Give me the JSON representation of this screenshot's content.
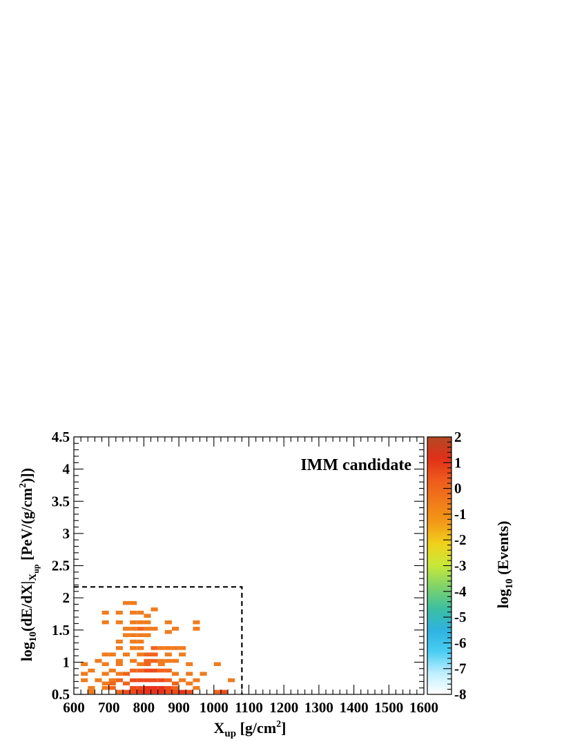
{
  "chart_data": {
    "type": "heatmap",
    "annotation": "IMM candidate",
    "xlabel": {
      "main": "X",
      "sub": "up",
      "rest": " [g/cm",
      "sup": "2",
      "end": "]"
    },
    "ylabel": {
      "a": "log",
      "a_sub": "10",
      "b": "(dE/dX|",
      "b_sub": "X",
      "b_subsub": "up",
      "c": " [PeV/(g/cm",
      "c_sup": "2",
      "d": ")])"
    },
    "zlabel": {
      "a": "log",
      "a_sub": "10",
      "b": " (Events)"
    },
    "xlim": [
      600,
      1600
    ],
    "ylim": [
      0.5,
      4.5
    ],
    "zlim": [
      -8,
      2
    ],
    "x_ticks": [
      "600",
      "700",
      "800",
      "900",
      "1000",
      "1100",
      "1200",
      "1300",
      "1400",
      "1500",
      "1600"
    ],
    "y_ticks": [
      "0.5",
      "1",
      "1.5",
      "2",
      "2.5",
      "3",
      "3.5",
      "4",
      "4.5"
    ],
    "z_ticks": [
      "2",
      "1",
      "0",
      "-1",
      "-2",
      "-3",
      "-4",
      "-5",
      "-6",
      "-7",
      "-8"
    ],
    "bin_width_x": 20,
    "bin_width_y": 0.1,
    "cut_region": {
      "x_max": 1080,
      "y_max": 2.17
    },
    "colors": [
      "#ffffff",
      "#bfeeff",
      "#48cdf2",
      "#2fb2e0",
      "#3cbfa0",
      "#7ed36a",
      "#c7e83a",
      "#f0d21b",
      "#f39a17",
      "#f07a1a",
      "#ee5a1d",
      "#e03018",
      "#b24a24"
    ],
    "cells": [
      [
        750,
        1.9,
        0
      ],
      [
        770,
        1.9,
        0
      ],
      [
        690,
        1.75,
        0
      ],
      [
        730,
        1.75,
        0
      ],
      [
        770,
        1.75,
        0
      ],
      [
        790,
        1.75,
        0
      ],
      [
        830,
        1.8,
        0
      ],
      [
        810,
        1.7,
        0
      ],
      [
        690,
        1.6,
        0
      ],
      [
        730,
        1.6,
        0
      ],
      [
        770,
        1.6,
        0
      ],
      [
        790,
        1.6,
        0
      ],
      [
        810,
        1.6,
        0
      ],
      [
        870,
        1.6,
        0
      ],
      [
        950,
        1.6,
        0
      ],
      [
        750,
        1.5,
        0
      ],
      [
        770,
        1.5,
        0
      ],
      [
        790,
        1.5,
        0.3
      ],
      [
        810,
        1.5,
        0
      ],
      [
        830,
        1.5,
        0
      ],
      [
        890,
        1.5,
        0
      ],
      [
        950,
        1.5,
        0
      ],
      [
        870,
        1.45,
        0
      ],
      [
        750,
        1.4,
        0
      ],
      [
        770,
        1.4,
        0
      ],
      [
        790,
        1.4,
        0
      ],
      [
        810,
        1.4,
        0
      ],
      [
        730,
        1.3,
        0
      ],
      [
        770,
        1.3,
        0
      ],
      [
        790,
        1.3,
        0
      ],
      [
        730,
        1.2,
        0
      ],
      [
        770,
        1.2,
        0
      ],
      [
        790,
        1.2,
        0
      ],
      [
        830,
        1.2,
        0.4
      ],
      [
        850,
        1.2,
        0
      ],
      [
        870,
        1.2,
        0
      ],
      [
        890,
        1.2,
        0
      ],
      [
        910,
        1.2,
        0
      ],
      [
        690,
        1.1,
        0
      ],
      [
        710,
        1.1,
        0
      ],
      [
        750,
        1.1,
        0
      ],
      [
        790,
        1.1,
        0
      ],
      [
        810,
        1.1,
        0.3
      ],
      [
        830,
        1.1,
        0.3
      ],
      [
        870,
        1.1,
        0
      ],
      [
        910,
        1.1,
        0
      ],
      [
        670,
        1.0,
        0
      ],
      [
        730,
        1.0,
        0
      ],
      [
        770,
        1.0,
        0
      ],
      [
        810,
        1.0,
        0.3
      ],
      [
        830,
        1.0,
        0.3
      ],
      [
        850,
        1.0,
        0
      ],
      [
        870,
        1.0,
        0
      ],
      [
        890,
        1.0,
        0
      ],
      [
        630,
        0.95,
        0
      ],
      [
        690,
        0.95,
        0
      ],
      [
        730,
        0.95,
        0
      ],
      [
        790,
        0.95,
        0
      ],
      [
        810,
        0.95,
        0.3
      ],
      [
        850,
        0.95,
        0
      ],
      [
        930,
        0.95,
        0
      ],
      [
        1010,
        0.95,
        0
      ],
      [
        650,
        0.85,
        0
      ],
      [
        710,
        0.85,
        0
      ],
      [
        770,
        0.85,
        0.3
      ],
      [
        790,
        0.85,
        0.3
      ],
      [
        810,
        0.85,
        0.6
      ],
      [
        830,
        0.85,
        0.6
      ],
      [
        850,
        0.85,
        0.3
      ],
      [
        870,
        0.85,
        0.3
      ],
      [
        630,
        0.8,
        0
      ],
      [
        690,
        0.8,
        0
      ],
      [
        730,
        0.8,
        0
      ],
      [
        750,
        0.8,
        0.3
      ],
      [
        890,
        0.8,
        0
      ],
      [
        930,
        0.8,
        0
      ],
      [
        970,
        0.8,
        0
      ],
      [
        630,
        0.7,
        0
      ],
      [
        670,
        0.7,
        0
      ],
      [
        710,
        0.7,
        0
      ],
      [
        730,
        0.7,
        0.3
      ],
      [
        770,
        0.7,
        0.6
      ],
      [
        790,
        0.7,
        0.6
      ],
      [
        810,
        0.7,
        0.6
      ],
      [
        830,
        0.7,
        0.6
      ],
      [
        850,
        0.7,
        0.6
      ],
      [
        870,
        0.7,
        0.3
      ],
      [
        910,
        0.7,
        0
      ],
      [
        950,
        0.7,
        0
      ],
      [
        1050,
        0.7,
        0
      ],
      [
        690,
        0.65,
        0
      ],
      [
        710,
        0.65,
        0.3
      ],
      [
        750,
        0.65,
        0.3
      ],
      [
        890,
        0.65,
        0.3
      ],
      [
        930,
        0.65,
        0
      ],
      [
        650,
        0.58,
        0
      ],
      [
        690,
        0.58,
        0
      ],
      [
        710,
        0.58,
        0.3
      ],
      [
        770,
        0.58,
        0.6
      ],
      [
        790,
        0.58,
        0.6
      ],
      [
        810,
        0.58,
        0.8
      ],
      [
        830,
        0.58,
        0.8
      ],
      [
        850,
        0.58,
        0.8
      ],
      [
        870,
        0.58,
        0.6
      ],
      [
        890,
        0.58,
        0.3
      ],
      [
        950,
        0.58,
        0
      ],
      [
        650,
        0.52,
        0
      ],
      [
        730,
        0.52,
        0.3
      ],
      [
        750,
        0.52,
        0.6
      ],
      [
        770,
        0.52,
        0.6
      ],
      [
        790,
        0.52,
        0.8
      ],
      [
        810,
        0.52,
        0.8
      ],
      [
        830,
        0.52,
        0.8
      ],
      [
        850,
        0.52,
        0.8
      ],
      [
        870,
        0.52,
        0.6
      ],
      [
        890,
        0.52,
        0.6
      ],
      [
        910,
        0.52,
        0.8
      ],
      [
        930,
        0.52,
        0.6
      ],
      [
        1010,
        0.52,
        0.3
      ],
      [
        1030,
        0.52,
        0.6
      ]
    ]
  }
}
